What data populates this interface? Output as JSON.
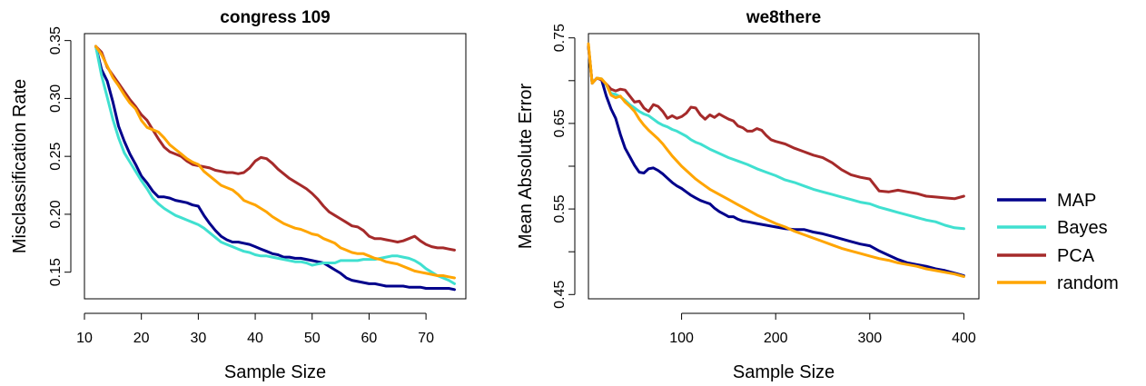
{
  "chart_data": [
    {
      "type": "line",
      "title": "congress 109",
      "xlabel": "Sample Size",
      "ylabel": "Misclassification Rate",
      "xlim": [
        10,
        77
      ],
      "ylim": [
        0.127,
        0.356
      ],
      "xticks": [
        10,
        20,
        30,
        40,
        50,
        60,
        70
      ],
      "yticks": [
        0.15,
        0.2,
        0.25,
        0.3,
        0.35
      ],
      "ytick_labels": [
        "0.15",
        "0.20",
        "0.25",
        "0.30",
        "0.35"
      ],
      "series": [
        {
          "name": "MAP",
          "color": "#00008B",
          "x": [
            12,
            13,
            14,
            15,
            16,
            17,
            18,
            19,
            20,
            21,
            22,
            23,
            24,
            25,
            26,
            27,
            28,
            29,
            30,
            31,
            32,
            33,
            34,
            35,
            36,
            37,
            38,
            39,
            40,
            41,
            42,
            43,
            44,
            45,
            46,
            47,
            48,
            49,
            50,
            51,
            52,
            53,
            54,
            55,
            56,
            57,
            58,
            59,
            60,
            61,
            62,
            63,
            64,
            65,
            66,
            67,
            68,
            69,
            70,
            71,
            72,
            73,
            74,
            75
          ],
          "y": [
            0.345,
            0.325,
            0.315,
            0.297,
            0.276,
            0.263,
            0.252,
            0.243,
            0.233,
            0.227,
            0.22,
            0.215,
            0.215,
            0.214,
            0.212,
            0.211,
            0.21,
            0.208,
            0.207,
            0.199,
            0.192,
            0.186,
            0.181,
            0.178,
            0.176,
            0.176,
            0.175,
            0.174,
            0.172,
            0.17,
            0.168,
            0.166,
            0.165,
            0.163,
            0.163,
            0.162,
            0.162,
            0.161,
            0.16,
            0.159,
            0.158,
            0.155,
            0.152,
            0.149,
            0.145,
            0.143,
            0.142,
            0.141,
            0.14,
            0.14,
            0.139,
            0.138,
            0.138,
            0.138,
            0.138,
            0.137,
            0.137,
            0.137,
            0.136,
            0.136,
            0.136,
            0.136,
            0.136,
            0.135
          ]
        },
        {
          "name": "Bayes",
          "color": "#40E0D0",
          "x": [
            12,
            13,
            14,
            15,
            16,
            17,
            18,
            19,
            20,
            21,
            22,
            23,
            24,
            25,
            26,
            27,
            28,
            29,
            30,
            31,
            32,
            33,
            34,
            35,
            36,
            37,
            38,
            39,
            40,
            41,
            42,
            43,
            44,
            45,
            46,
            47,
            48,
            49,
            50,
            51,
            52,
            53,
            54,
            55,
            56,
            57,
            58,
            59,
            60,
            61,
            62,
            63,
            64,
            65,
            66,
            67,
            68,
            69,
            70,
            71,
            72,
            73,
            74,
            75
          ],
          "y": [
            0.345,
            0.32,
            0.301,
            0.282,
            0.266,
            0.253,
            0.245,
            0.237,
            0.229,
            0.222,
            0.214,
            0.209,
            0.205,
            0.202,
            0.199,
            0.197,
            0.195,
            0.193,
            0.191,
            0.188,
            0.184,
            0.18,
            0.176,
            0.174,
            0.172,
            0.17,
            0.168,
            0.167,
            0.165,
            0.164,
            0.164,
            0.163,
            0.162,
            0.161,
            0.16,
            0.159,
            0.159,
            0.158,
            0.156,
            0.157,
            0.158,
            0.158,
            0.158,
            0.16,
            0.16,
            0.16,
            0.16,
            0.161,
            0.161,
            0.161,
            0.162,
            0.163,
            0.164,
            0.164,
            0.163,
            0.162,
            0.16,
            0.157,
            0.153,
            0.15,
            0.147,
            0.145,
            0.143,
            0.14
          ]
        },
        {
          "name": "PCA",
          "color": "#A52A2A",
          "x": [
            12,
            13,
            14,
            15,
            16,
            17,
            18,
            19,
            20,
            21,
            22,
            23,
            24,
            25,
            26,
            27,
            28,
            29,
            30,
            31,
            32,
            33,
            34,
            35,
            36,
            37,
            38,
            39,
            40,
            41,
            42,
            43,
            44,
            45,
            46,
            47,
            48,
            49,
            50,
            51,
            52,
            53,
            54,
            55,
            56,
            57,
            58,
            59,
            60,
            61,
            62,
            63,
            64,
            65,
            66,
            67,
            68,
            69,
            70,
            71,
            72,
            73,
            74,
            75
          ],
          "y": [
            0.345,
            0.34,
            0.327,
            0.32,
            0.313,
            0.306,
            0.299,
            0.293,
            0.286,
            0.281,
            0.273,
            0.265,
            0.258,
            0.254,
            0.252,
            0.25,
            0.246,
            0.243,
            0.242,
            0.241,
            0.24,
            0.238,
            0.237,
            0.236,
            0.236,
            0.235,
            0.236,
            0.24,
            0.246,
            0.249,
            0.248,
            0.244,
            0.239,
            0.235,
            0.231,
            0.228,
            0.225,
            0.222,
            0.218,
            0.213,
            0.207,
            0.202,
            0.199,
            0.196,
            0.193,
            0.19,
            0.189,
            0.186,
            0.181,
            0.179,
            0.179,
            0.178,
            0.177,
            0.176,
            0.177,
            0.179,
            0.181,
            0.177,
            0.174,
            0.172,
            0.171,
            0.171,
            0.17,
            0.169
          ]
        },
        {
          "name": "random",
          "color": "#FFA500",
          "x": [
            12,
            13,
            14,
            15,
            16,
            17,
            18,
            19,
            20,
            21,
            22,
            23,
            24,
            25,
            26,
            27,
            28,
            29,
            30,
            31,
            32,
            33,
            34,
            35,
            36,
            37,
            38,
            39,
            40,
            41,
            42,
            43,
            44,
            45,
            46,
            47,
            48,
            49,
            50,
            51,
            52,
            53,
            54,
            55,
            56,
            57,
            58,
            59,
            60,
            61,
            62,
            63,
            64,
            65,
            66,
            67,
            68,
            69,
            70,
            71,
            72,
            73,
            74,
            75
          ],
          "y": [
            0.345,
            0.338,
            0.328,
            0.318,
            0.311,
            0.303,
            0.296,
            0.291,
            0.281,
            0.275,
            0.273,
            0.271,
            0.266,
            0.26,
            0.256,
            0.252,
            0.248,
            0.245,
            0.243,
            0.237,
            0.233,
            0.229,
            0.225,
            0.223,
            0.221,
            0.217,
            0.212,
            0.21,
            0.208,
            0.205,
            0.202,
            0.198,
            0.195,
            0.192,
            0.19,
            0.188,
            0.187,
            0.185,
            0.183,
            0.182,
            0.179,
            0.177,
            0.175,
            0.171,
            0.169,
            0.167,
            0.166,
            0.166,
            0.164,
            0.162,
            0.161,
            0.159,
            0.158,
            0.157,
            0.155,
            0.153,
            0.151,
            0.15,
            0.149,
            0.148,
            0.147,
            0.147,
            0.146,
            0.145
          ]
        }
      ]
    },
    {
      "type": "line",
      "title": "we8there",
      "xlabel": "Sample Size",
      "ylabel": "Mean Absolute Error",
      "xlim": [
        1,
        416
      ],
      "ylim": [
        0.445,
        0.755
      ],
      "xticks": [
        100,
        200,
        300,
        400
      ],
      "yticks": [
        0.45,
        0.5,
        0.55,
        0.6,
        0.65,
        0.7,
        0.75
      ],
      "ytick_labels": [
        "0.45",
        "",
        "0.55",
        "",
        "0.65",
        "",
        "0.75"
      ],
      "series": [
        {
          "name": "MAP",
          "color": "#00008B",
          "x": [
            1,
            5,
            10,
            15,
            20,
            25,
            30,
            35,
            40,
            45,
            50,
            55,
            60,
            65,
            70,
            75,
            80,
            85,
            90,
            95,
            100,
            105,
            110,
            115,
            120,
            125,
            130,
            135,
            140,
            145,
            150,
            155,
            160,
            165,
            170,
            180,
            190,
            200,
            210,
            220,
            230,
            240,
            250,
            260,
            270,
            280,
            290,
            300,
            310,
            320,
            330,
            340,
            350,
            360,
            370,
            380,
            390,
            400
          ],
          "y": [
            0.74,
            0.697,
            0.703,
            0.701,
            0.682,
            0.667,
            0.656,
            0.637,
            0.621,
            0.611,
            0.601,
            0.593,
            0.592,
            0.597,
            0.598,
            0.595,
            0.591,
            0.586,
            0.581,
            0.577,
            0.574,
            0.57,
            0.566,
            0.563,
            0.56,
            0.558,
            0.556,
            0.551,
            0.547,
            0.544,
            0.541,
            0.541,
            0.538,
            0.536,
            0.535,
            0.533,
            0.531,
            0.529,
            0.527,
            0.526,
            0.526,
            0.523,
            0.521,
            0.518,
            0.515,
            0.512,
            0.509,
            0.507,
            0.501,
            0.496,
            0.491,
            0.487,
            0.485,
            0.483,
            0.48,
            0.478,
            0.475,
            0.472
          ]
        },
        {
          "name": "Bayes",
          "color": "#40E0D0",
          "x": [
            1,
            5,
            10,
            15,
            20,
            25,
            30,
            35,
            40,
            45,
            50,
            55,
            60,
            65,
            70,
            75,
            80,
            85,
            90,
            95,
            100,
            105,
            110,
            115,
            120,
            125,
            130,
            140,
            150,
            160,
            170,
            180,
            190,
            200,
            210,
            220,
            230,
            240,
            250,
            260,
            270,
            280,
            290,
            300,
            310,
            320,
            330,
            340,
            350,
            360,
            370,
            380,
            390,
            400
          ],
          "y": [
            0.74,
            0.697,
            0.703,
            0.702,
            0.695,
            0.685,
            0.684,
            0.681,
            0.677,
            0.672,
            0.668,
            0.664,
            0.661,
            0.659,
            0.655,
            0.651,
            0.648,
            0.646,
            0.643,
            0.641,
            0.638,
            0.635,
            0.631,
            0.628,
            0.626,
            0.623,
            0.62,
            0.615,
            0.61,
            0.606,
            0.602,
            0.597,
            0.593,
            0.589,
            0.584,
            0.581,
            0.577,
            0.573,
            0.57,
            0.567,
            0.564,
            0.561,
            0.558,
            0.556,
            0.552,
            0.549,
            0.546,
            0.543,
            0.54,
            0.537,
            0.535,
            0.531,
            0.528,
            0.527
          ]
        },
        {
          "name": "PCA",
          "color": "#A52A2A",
          "x": [
            1,
            5,
            10,
            15,
            20,
            25,
            30,
            35,
            40,
            45,
            50,
            55,
            60,
            65,
            70,
            75,
            80,
            85,
            90,
            95,
            100,
            105,
            110,
            115,
            120,
            125,
            130,
            135,
            140,
            145,
            150,
            155,
            160,
            165,
            170,
            175,
            180,
            185,
            190,
            195,
            200,
            210,
            220,
            230,
            240,
            250,
            260,
            270,
            280,
            290,
            300,
            310,
            320,
            330,
            340,
            350,
            360,
            370,
            380,
            390,
            400
          ],
          "y": [
            0.74,
            0.697,
            0.703,
            0.701,
            0.696,
            0.69,
            0.688,
            0.69,
            0.689,
            0.682,
            0.675,
            0.676,
            0.668,
            0.664,
            0.672,
            0.67,
            0.664,
            0.656,
            0.659,
            0.656,
            0.658,
            0.662,
            0.669,
            0.668,
            0.66,
            0.655,
            0.66,
            0.657,
            0.661,
            0.658,
            0.655,
            0.653,
            0.647,
            0.645,
            0.641,
            0.641,
            0.644,
            0.642,
            0.636,
            0.631,
            0.629,
            0.626,
            0.621,
            0.617,
            0.613,
            0.61,
            0.604,
            0.596,
            0.59,
            0.587,
            0.585,
            0.571,
            0.57,
            0.572,
            0.57,
            0.568,
            0.565,
            0.564,
            0.563,
            0.562,
            0.565
          ]
        },
        {
          "name": "random",
          "color": "#FFA500",
          "x": [
            1,
            5,
            10,
            15,
            20,
            25,
            30,
            35,
            40,
            45,
            50,
            55,
            60,
            65,
            70,
            75,
            80,
            85,
            90,
            95,
            100,
            105,
            110,
            115,
            120,
            125,
            130,
            140,
            150,
            160,
            170,
            180,
            190,
            200,
            210,
            220,
            230,
            240,
            250,
            260,
            270,
            280,
            290,
            300,
            310,
            320,
            330,
            340,
            350,
            360,
            370,
            380,
            390,
            400
          ],
          "y": [
            0.743,
            0.697,
            0.703,
            0.702,
            0.696,
            0.683,
            0.68,
            0.682,
            0.675,
            0.67,
            0.664,
            0.655,
            0.648,
            0.642,
            0.637,
            0.632,
            0.626,
            0.619,
            0.612,
            0.606,
            0.6,
            0.595,
            0.59,
            0.585,
            0.581,
            0.577,
            0.573,
            0.567,
            0.561,
            0.555,
            0.549,
            0.543,
            0.538,
            0.533,
            0.529,
            0.524,
            0.52,
            0.516,
            0.512,
            0.508,
            0.504,
            0.501,
            0.498,
            0.495,
            0.492,
            0.49,
            0.487,
            0.485,
            0.483,
            0.48,
            0.478,
            0.476,
            0.474,
            0.471
          ]
        }
      ]
    }
  ],
  "legend": {
    "placement": "right",
    "entries": [
      {
        "label": "MAP",
        "color": "#00008B"
      },
      {
        "label": "Bayes",
        "color": "#40E0D0"
      },
      {
        "label": "PCA",
        "color": "#A52A2A"
      },
      {
        "label": "random",
        "color": "#FFA500"
      }
    ]
  }
}
